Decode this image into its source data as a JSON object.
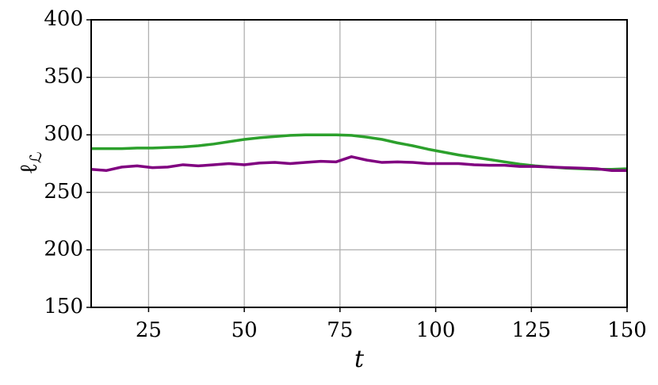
{
  "chart_data": {
    "type": "line",
    "xlabel": "t",
    "ylabel": "ℓ",
    "ylabel_sub": "ℒ",
    "x": [
      10,
      14,
      18,
      22,
      26,
      30,
      34,
      38,
      42,
      46,
      50,
      54,
      58,
      62,
      66,
      70,
      74,
      78,
      82,
      86,
      90,
      94,
      98,
      102,
      106,
      110,
      114,
      118,
      122,
      126,
      130,
      134,
      138,
      142,
      146,
      150
    ],
    "series": [
      {
        "name": "green",
        "color": "#2ca02c",
        "values": [
          288,
          288,
          288,
          288.5,
          288.5,
          289,
          289.5,
          290.5,
          292,
          294,
          296,
          297.5,
          298.5,
          299.5,
          300,
          300,
          300,
          299.5,
          298,
          296,
          293,
          290.5,
          287.5,
          285,
          282.5,
          280.5,
          278.5,
          276.5,
          274.5,
          273,
          272,
          271,
          270.5,
          270,
          270,
          270.5
        ]
      },
      {
        "name": "purple",
        "color": "#800080",
        "values": [
          270,
          269,
          272,
          273,
          271.5,
          272,
          274,
          273,
          274,
          275,
          274,
          275.5,
          276,
          275,
          276,
          277,
          276.5,
          281,
          278,
          276,
          276.5,
          276,
          275,
          275,
          275,
          274,
          273.5,
          273.5,
          272.5,
          272.5,
          272,
          271.5,
          271,
          270.5,
          269,
          269
        ]
      }
    ],
    "xlim": [
      10,
      150
    ],
    "xticks": [
      25,
      50,
      75,
      100,
      125,
      150
    ],
    "ylim": [
      150,
      400
    ],
    "yticks": [
      150,
      200,
      250,
      300,
      350,
      400
    ],
    "grid": true
  }
}
